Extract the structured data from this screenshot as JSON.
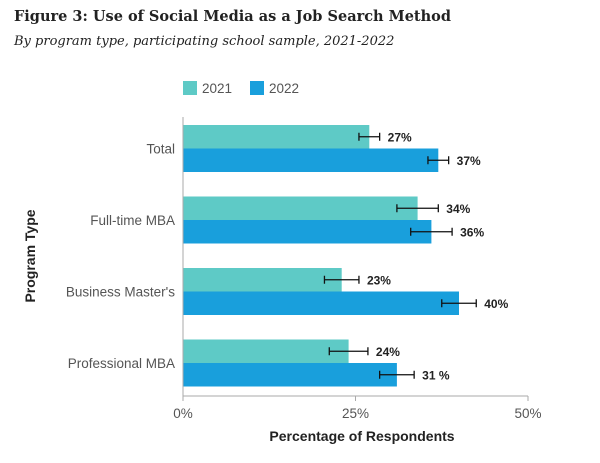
{
  "title": "Figure 3: Use of Social Media as a Job Search Method",
  "subtitle": "By program type, participating school sample, 2021-2022",
  "colors": {
    "series_2021": "#5ecac6",
    "series_2022": "#199fdc",
    "axis": "#aaaaaa",
    "error_bar": "#111111"
  },
  "chart_data": {
    "type": "bar",
    "orientation": "horizontal",
    "title": "Figure 3: Use of Social Media as a Job Search Method",
    "xlabel": "Percentage of Respondents",
    "ylabel": "Program Type",
    "xlim": [
      0,
      50
    ],
    "xticks": [
      0,
      25,
      50
    ],
    "xtick_labels": [
      "0%",
      "25%",
      "50%"
    ],
    "categories": [
      "Total",
      "Full-time MBA",
      "Business Master's",
      "Professional MBA"
    ],
    "legend": [
      "2021",
      "2022"
    ],
    "legend_position": "top-left",
    "series": [
      {
        "name": "2021",
        "values": [
          27,
          34,
          23,
          24
        ],
        "labels": [
          "27%",
          "34%",
          "23%",
          "24%"
        ],
        "errors": [
          1.5,
          3,
          2.5,
          2.8
        ]
      },
      {
        "name": "2022",
        "values": [
          37,
          36,
          40,
          31
        ],
        "labels": [
          "37%",
          "36%",
          "40%",
          "31 %"
        ],
        "errors": [
          1.5,
          3,
          2.5,
          2.5
        ]
      }
    ]
  }
}
